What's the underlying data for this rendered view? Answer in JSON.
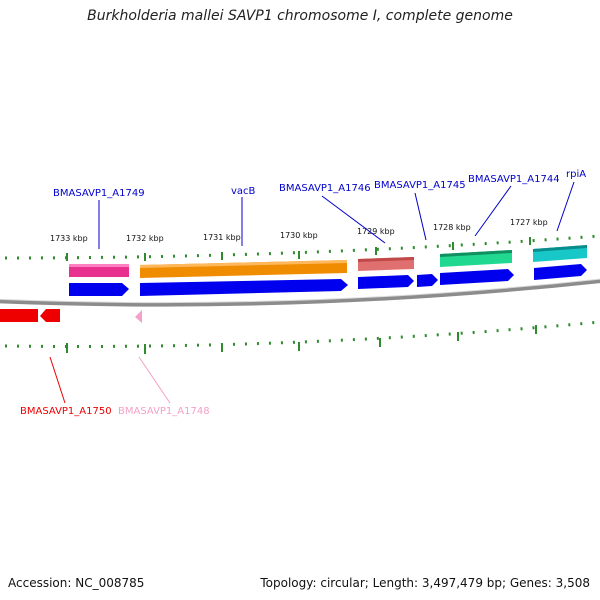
{
  "title": "Burkholderia mallei SAVP1 chromosome I, complete genome",
  "footer": {
    "accession": "Accession: NC_008785",
    "summary": "Topology: circular; Length: 3,497,479 bp; Genes: 3,508"
  },
  "colors": {
    "backbone": "#8c8c8c",
    "tick": "#2e8b2e",
    "cds": "#0000ee",
    "label_blue": "#0000cc"
  },
  "ticks": [
    "1733 kbp",
    "1732 kbp",
    "1731 kbp",
    "1730 kbp",
    "1729 kbp",
    "1728 kbp",
    "1727 kbp"
  ],
  "gene_labels": {
    "a1749": "BMASAVP1_A1749",
    "vacB": "vacB",
    "a1746": "BMASAVP1_A1746",
    "a1745": "BMASAVP1_A1745",
    "a1744": "BMASAVP1_A1744",
    "rpiA": "rpiA",
    "a1750": "BMASAVP1_A1750",
    "a1748": "BMASAVP1_A1748"
  },
  "feature_colors": {
    "a1749": "#e8318f",
    "vacB": "#f08c00",
    "a1746": "#e07070",
    "a1744": "#20d890",
    "rpiA": "#18c8c8",
    "a1750": "#ee0000",
    "a1748": "#f4a0c8"
  }
}
